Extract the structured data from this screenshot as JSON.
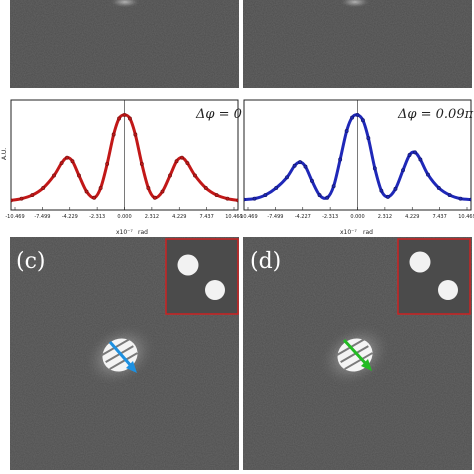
{
  "figure": {
    "panels": [
      {
        "id": "c",
        "label": "(c)",
        "arrow_color": "#1e90e0"
      },
      {
        "id": "d",
        "label": "(d)",
        "arrow_color": "#22bb22"
      }
    ],
    "inset_border_color": "#cc2222"
  },
  "chart_data": [
    {
      "type": "scatter",
      "annotation": "Δφ = 0",
      "fit_color": "#c21818",
      "marker_color": "#7a0e0e",
      "ylabel": "A.U.",
      "xlabel": "x10⁻⁷",
      "xunit": "rad",
      "x_ticks": [
        "-10.469",
        "-7.499",
        "-4.229",
        "-2.313",
        "0.000",
        "2.312",
        "4.229",
        "7.437",
        "10.469"
      ],
      "xlim": [
        -10.469,
        10.469
      ],
      "ylim": [
        0,
        1.1
      ],
      "x": [
        -10.5,
        -9.5,
        -8.5,
        -7.5,
        -6.5,
        -5.8,
        -5.3,
        -4.8,
        -4.2,
        -3.5,
        -2.8,
        -2.2,
        -1.6,
        -1.0,
        -0.5,
        0,
        0.5,
        1.0,
        1.6,
        2.2,
        2.8,
        3.5,
        4.2,
        4.8,
        5.3,
        5.8,
        6.5,
        7.5,
        8.5,
        9.5,
        10.5
      ],
      "y": [
        0.04,
        0.06,
        0.1,
        0.18,
        0.32,
        0.46,
        0.52,
        0.48,
        0.32,
        0.14,
        0.07,
        0.18,
        0.45,
        0.78,
        0.96,
        1.0,
        0.96,
        0.78,
        0.45,
        0.18,
        0.07,
        0.14,
        0.32,
        0.48,
        0.52,
        0.46,
        0.32,
        0.18,
        0.1,
        0.06,
        0.04
      ]
    },
    {
      "type": "scatter",
      "annotation": "Δφ = 0.09π",
      "fit_color": "#1f28b8",
      "marker_color": "#10156e",
      "ylabel": "",
      "xlabel": "x10⁻⁷",
      "xunit": "rad",
      "x_ticks": [
        "-10.469",
        "-7.499",
        "-4.227",
        "-2.313",
        "0.000",
        "2.312",
        "4.229",
        "7.437",
        "10.469"
      ],
      "xlim": [
        -10.469,
        10.469
      ],
      "ylim": [
        0,
        1.1
      ],
      "x": [
        -10.5,
        -9.5,
        -8.5,
        -7.5,
        -6.5,
        -5.8,
        -5.3,
        -4.8,
        -4.2,
        -3.5,
        -2.8,
        -2.2,
        -1.6,
        -1.0,
        -0.5,
        0,
        0.5,
        1.0,
        1.6,
        2.2,
        2.8,
        3.5,
        4.2,
        4.8,
        5.3,
        5.8,
        6.5,
        7.5,
        8.5,
        9.5,
        10.5
      ],
      "y": [
        0.05,
        0.06,
        0.1,
        0.18,
        0.3,
        0.43,
        0.47,
        0.42,
        0.26,
        0.1,
        0.07,
        0.2,
        0.5,
        0.82,
        0.97,
        1.0,
        0.94,
        0.74,
        0.4,
        0.15,
        0.08,
        0.17,
        0.38,
        0.55,
        0.58,
        0.5,
        0.33,
        0.18,
        0.1,
        0.06,
        0.05
      ]
    }
  ]
}
